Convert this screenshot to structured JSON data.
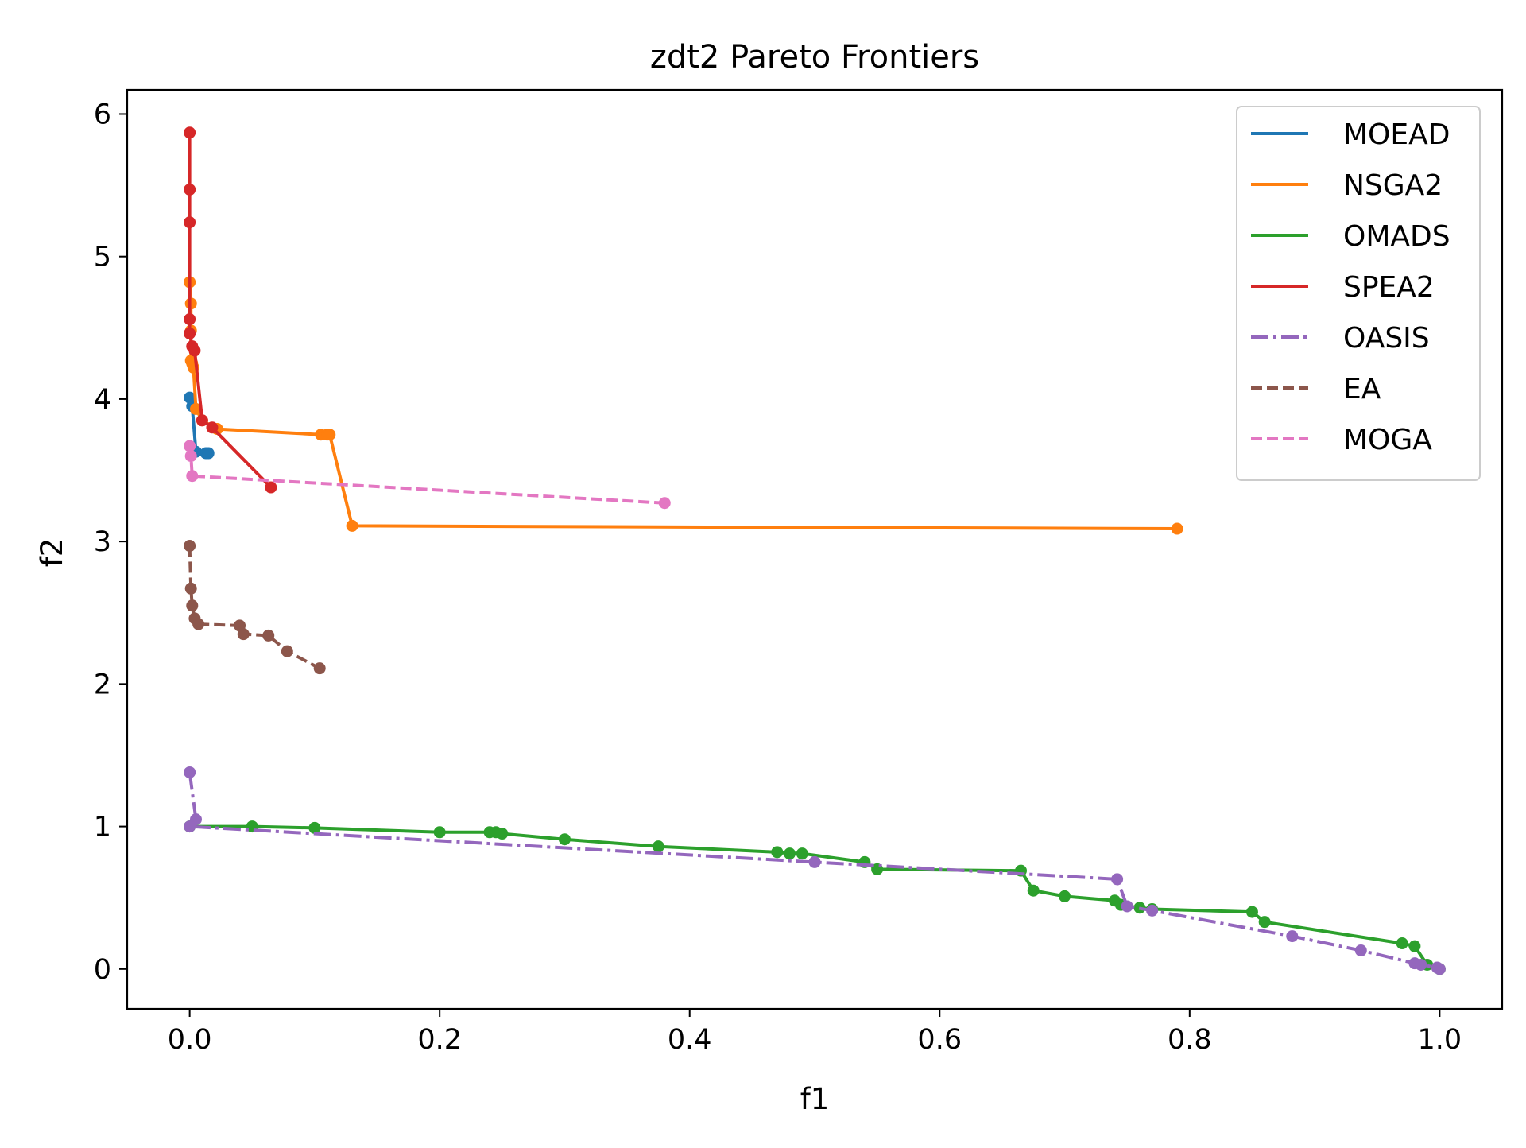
{
  "chart_data": {
    "type": "line",
    "title": "zdt2 Pareto Frontiers",
    "xlabel": "f1",
    "ylabel": "f2",
    "xlim": [
      -0.05,
      1.05
    ],
    "ylim": [
      -0.28,
      6.17
    ],
    "xticks": [
      0.0,
      0.2,
      0.4,
      0.6,
      0.8,
      1.0
    ],
    "xtick_labels": [
      "0.0",
      "0.2",
      "0.4",
      "0.6",
      "0.8",
      "1.0"
    ],
    "yticks": [
      0,
      1,
      2,
      3,
      4,
      5,
      6
    ],
    "ytick_labels": [
      "0",
      "1",
      "2",
      "3",
      "4",
      "5",
      "6"
    ],
    "grid": false,
    "legend_position": "top-right",
    "series": [
      {
        "name": "MOEAD",
        "color": "#1f77b4",
        "dash": "solid",
        "x": [
          0.0,
          0.002,
          0.005,
          0.013,
          0.015
        ],
        "y": [
          4.01,
          3.95,
          3.63,
          3.62,
          3.62
        ]
      },
      {
        "name": "NSGA2",
        "color": "#ff7f0e",
        "dash": "solid",
        "x": [
          0.0,
          0.001,
          0.001,
          0.001,
          0.002,
          0.003,
          0.005,
          0.01,
          0.022,
          0.105,
          0.11,
          0.112,
          0.13,
          0.79
        ],
        "y": [
          4.82,
          4.67,
          4.48,
          4.27,
          4.25,
          4.22,
          3.93,
          3.85,
          3.79,
          3.75,
          3.75,
          3.75,
          3.11,
          3.09
        ]
      },
      {
        "name": "OMADS",
        "color": "#2ca02c",
        "dash": "solid",
        "x": [
          0.0,
          0.05,
          0.1,
          0.2,
          0.24,
          0.245,
          0.25,
          0.3,
          0.375,
          0.47,
          0.48,
          0.49,
          0.54,
          0.55,
          0.665,
          0.675,
          0.7,
          0.74,
          0.745,
          0.76,
          0.77,
          0.85,
          0.86,
          0.97,
          0.98,
          0.99,
          1.0
        ],
        "y": [
          1.0,
          1.0,
          0.99,
          0.96,
          0.96,
          0.96,
          0.95,
          0.91,
          0.86,
          0.82,
          0.81,
          0.81,
          0.75,
          0.7,
          0.69,
          0.55,
          0.51,
          0.48,
          0.45,
          0.43,
          0.42,
          0.4,
          0.33,
          0.18,
          0.16,
          0.03,
          0.0
        ]
      },
      {
        "name": "SPEA2",
        "color": "#d62728",
        "dash": "solid",
        "x": [
          0.0,
          0.0,
          0.0,
          0.0,
          0.0,
          0.002,
          0.004,
          0.01,
          0.018,
          0.065
        ],
        "y": [
          5.87,
          5.47,
          5.24,
          4.56,
          4.46,
          4.37,
          4.34,
          3.85,
          3.8,
          3.38
        ]
      },
      {
        "name": "OASIS",
        "color": "#9467bd",
        "dash": "dashdot",
        "x": [
          0.0,
          0.005,
          0.0,
          0.5,
          0.742,
          0.75,
          0.77,
          0.882,
          0.937,
          0.98,
          0.985,
          0.998,
          1.0
        ],
        "y": [
          1.38,
          1.05,
          1.0,
          0.75,
          0.63,
          0.44,
          0.41,
          0.23,
          0.13,
          0.04,
          0.03,
          0.01,
          0.0
        ]
      },
      {
        "name": "EA",
        "color": "#8c564b",
        "dash": "dashed",
        "x": [
          0.0,
          0.001,
          0.002,
          0.004,
          0.007,
          0.04,
          0.043,
          0.063,
          0.078,
          0.104
        ],
        "y": [
          2.97,
          2.67,
          2.55,
          2.46,
          2.42,
          2.41,
          2.35,
          2.34,
          2.23,
          2.11
        ]
      },
      {
        "name": "MOGA",
        "color": "#e377c2",
        "dash": "dashed",
        "x": [
          0.0,
          0.001,
          0.002,
          0.38
        ],
        "y": [
          3.67,
          3.6,
          3.46,
          3.27
        ]
      }
    ]
  }
}
